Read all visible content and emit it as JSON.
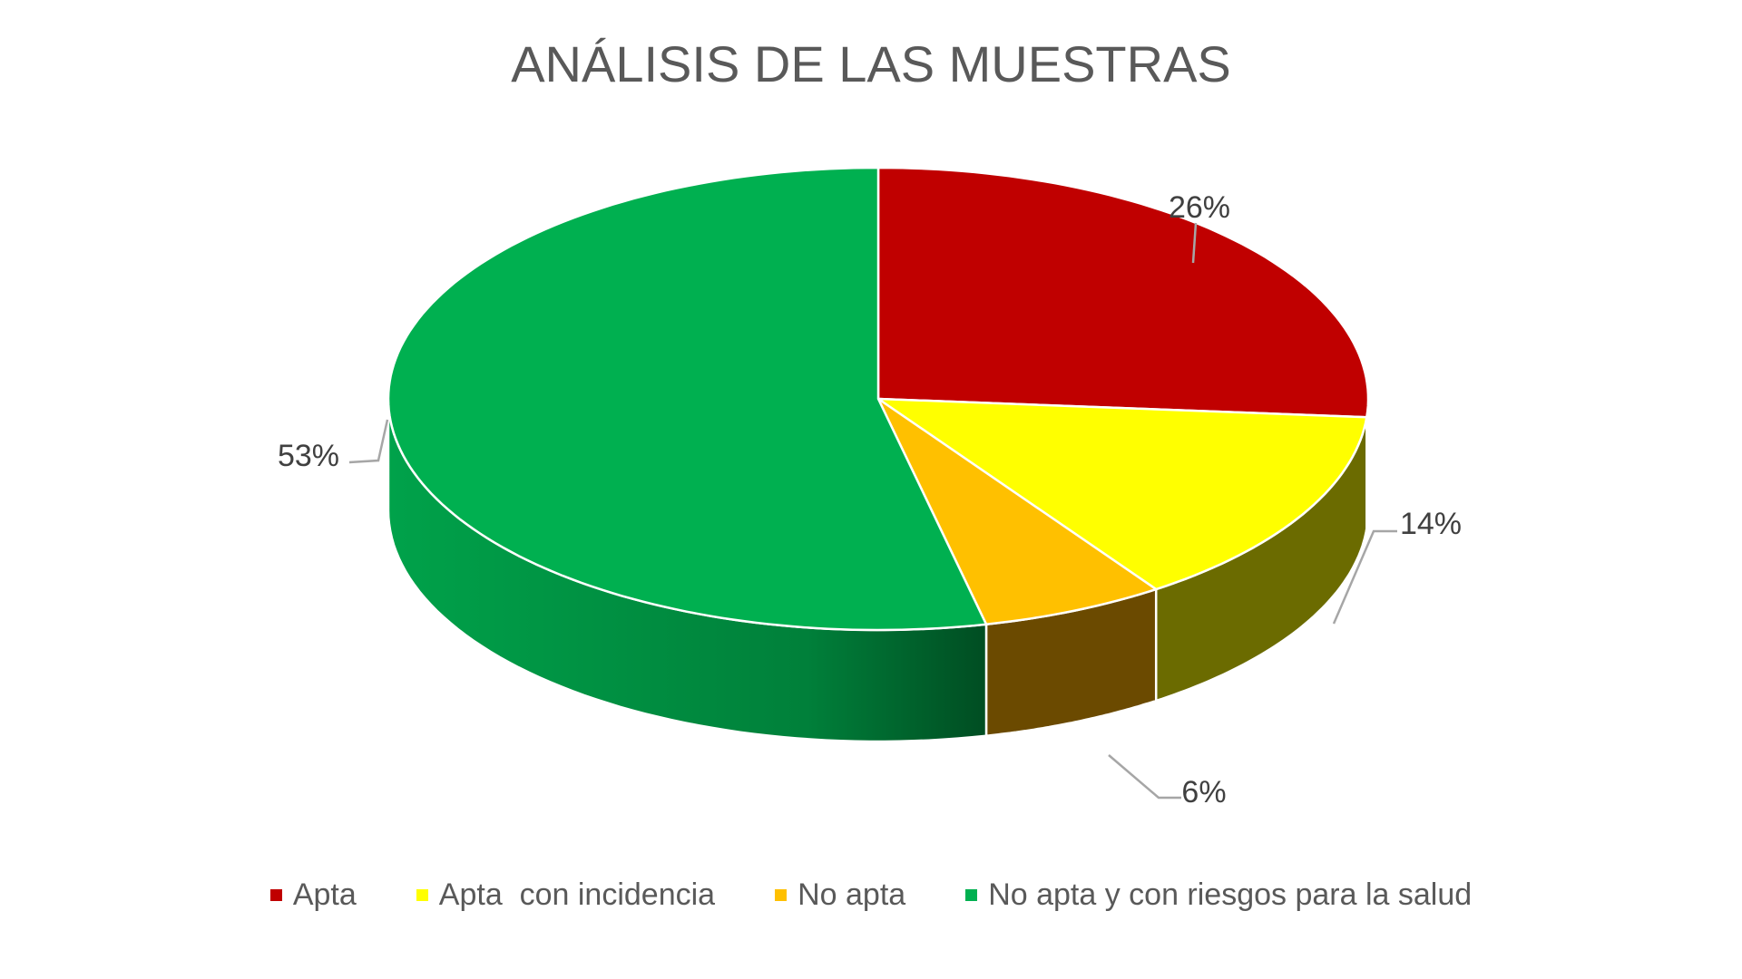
{
  "chart_data": {
    "type": "pie",
    "title": "ANÁLISIS DE LAS MUESTRAS",
    "categories": [
      "Apta",
      "Apta  con incidencia",
      "No apta",
      "No apta y con riesgos para la salud"
    ],
    "values": [
      26,
      14,
      6,
      53
    ],
    "data_labels": [
      "26%",
      "14%",
      "6%",
      "53%"
    ],
    "colors": [
      "#C00000",
      "#FFFF00",
      "#FFC000",
      "#00B050"
    ],
    "side_colors": [
      "#7a0000",
      "#6b6b00",
      "#6b4a00",
      "#007a35"
    ],
    "legend_position": "bottom",
    "style": "3d"
  }
}
